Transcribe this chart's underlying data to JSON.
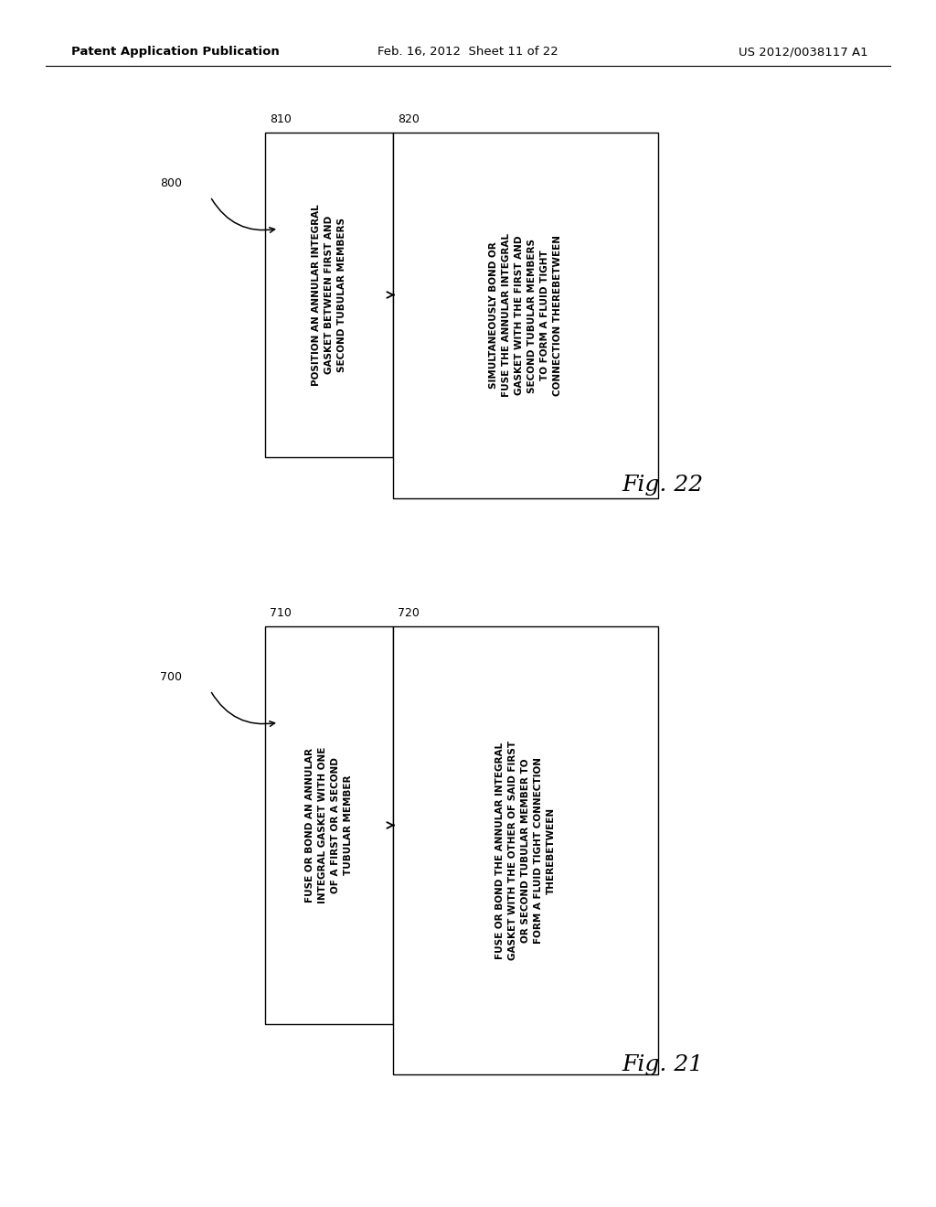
{
  "background_color": "#ffffff",
  "header_left": "Patent Application Publication",
  "header_center": "Feb. 16, 2012  Sheet 11 of 22",
  "header_right": "US 2012/0038117 A1",
  "header_fontsize": 9.5,
  "fig22": {
    "ref_label": "800",
    "fig_label": "Fig. 22",
    "box1_label": "810",
    "box2_label": "820",
    "box1_text": "POSITION AN ANNULAR INTEGRAL\nGASKET BETWEEN FIRST AND\nSECOND TUBULAR MEMBERS",
    "box2_text": "SIMULTANEOUSLY BOND OR\nFUSE THE ANNULAR INTEGRAL\nGASKET WITH THE FIRST AND\nSECOND TUBULAR MEMBERS\nTO FORM A FLUID TIGHT\nCONNECTION THEREBETWEEN"
  },
  "fig21": {
    "ref_label": "700",
    "fig_label": "Fig. 21",
    "box1_label": "710",
    "box2_label": "720",
    "box1_text": "FUSE OR BOND AN ANNULAR\nINTEGRAL GASKET WITH ONE\nOF A FIRST OR A SECOND\nTUBULAR MEMBER",
    "box2_text": "FUSE OR BOND THE ANNULAR INTEGRAL\nGASKET WITH THE OTHER OF SAID FIRST\nOR SECOND TUBULAR MEMBER TO\nFORM A FLUID TIGHT CONNECTION\nTHEREBETWEEN"
  }
}
